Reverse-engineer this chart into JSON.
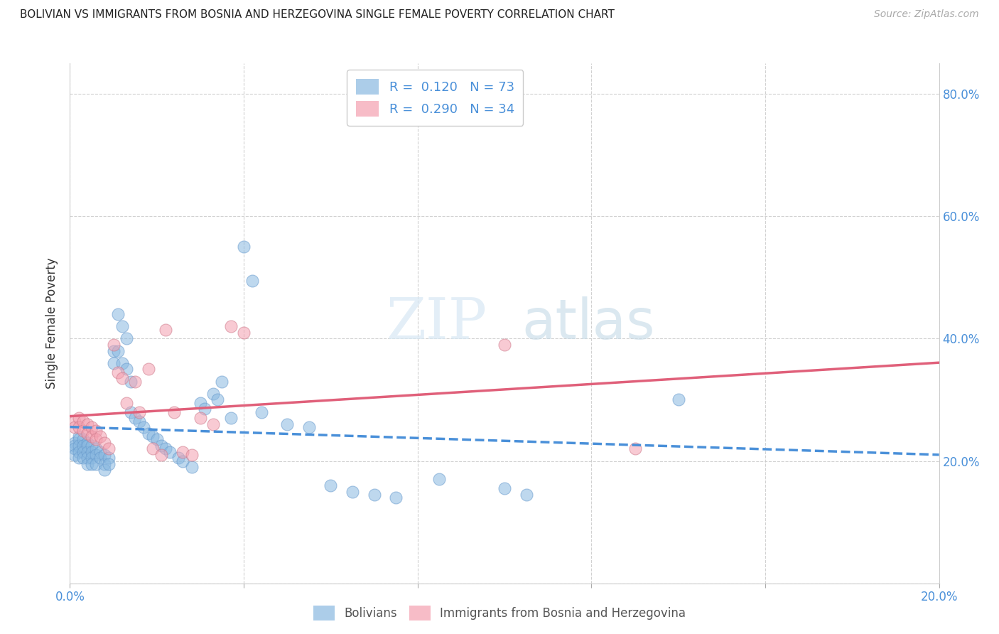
{
  "title": "BOLIVIAN VS IMMIGRANTS FROM BOSNIA AND HERZEGOVINA SINGLE FEMALE POVERTY CORRELATION CHART",
  "source": "Source: ZipAtlas.com",
  "xlabel": "",
  "ylabel": "Single Female Poverty",
  "xlim": [
    0.0,
    0.2
  ],
  "ylim": [
    0.0,
    0.85
  ],
  "x_tick_vals": [
    0.0,
    0.04,
    0.08,
    0.12,
    0.16,
    0.2
  ],
  "x_tick_labels": [
    "0.0%",
    "",
    "",
    "",
    "",
    "20.0%"
  ],
  "y_tick_vals": [
    0.0,
    0.2,
    0.4,
    0.6,
    0.8
  ],
  "y_tick_labels_right": [
    "",
    "20.0%",
    "40.0%",
    "60.0%",
    "80.0%"
  ],
  "blue_color": "#89b8e0",
  "pink_color": "#f4a0b0",
  "trend_blue": "#4a90d9",
  "trend_pink": "#e0607a",
  "blue_scatter_x": [
    0.001,
    0.001,
    0.001,
    0.001,
    0.002,
    0.002,
    0.002,
    0.002,
    0.002,
    0.003,
    0.003,
    0.003,
    0.003,
    0.004,
    0.004,
    0.004,
    0.004,
    0.004,
    0.005,
    0.005,
    0.005,
    0.005,
    0.006,
    0.006,
    0.006,
    0.007,
    0.007,
    0.008,
    0.008,
    0.008,
    0.009,
    0.009,
    0.01,
    0.01,
    0.011,
    0.011,
    0.012,
    0.012,
    0.013,
    0.013,
    0.014,
    0.014,
    0.015,
    0.016,
    0.017,
    0.018,
    0.019,
    0.02,
    0.021,
    0.022,
    0.023,
    0.025,
    0.026,
    0.028,
    0.03,
    0.031,
    0.033,
    0.034,
    0.035,
    0.037,
    0.04,
    0.042,
    0.044,
    0.05,
    0.055,
    0.06,
    0.065,
    0.07,
    0.075,
    0.085,
    0.1,
    0.105,
    0.14
  ],
  "blue_scatter_y": [
    0.23,
    0.225,
    0.22,
    0.21,
    0.24,
    0.235,
    0.225,
    0.215,
    0.205,
    0.235,
    0.225,
    0.215,
    0.205,
    0.23,
    0.225,
    0.215,
    0.205,
    0.195,
    0.225,
    0.215,
    0.205,
    0.195,
    0.22,
    0.21,
    0.195,
    0.215,
    0.205,
    0.21,
    0.195,
    0.185,
    0.205,
    0.195,
    0.38,
    0.36,
    0.44,
    0.38,
    0.42,
    0.36,
    0.4,
    0.35,
    0.33,
    0.28,
    0.27,
    0.265,
    0.255,
    0.245,
    0.24,
    0.235,
    0.225,
    0.22,
    0.215,
    0.205,
    0.2,
    0.19,
    0.295,
    0.285,
    0.31,
    0.3,
    0.33,
    0.27,
    0.55,
    0.495,
    0.28,
    0.26,
    0.255,
    0.16,
    0.15,
    0.145,
    0.14,
    0.17,
    0.155,
    0.145,
    0.3
  ],
  "pink_scatter_x": [
    0.001,
    0.001,
    0.002,
    0.002,
    0.003,
    0.003,
    0.004,
    0.004,
    0.005,
    0.005,
    0.006,
    0.006,
    0.007,
    0.008,
    0.009,
    0.01,
    0.011,
    0.012,
    0.013,
    0.015,
    0.016,
    0.018,
    0.019,
    0.021,
    0.022,
    0.024,
    0.026,
    0.028,
    0.03,
    0.033,
    0.037,
    0.04,
    0.1,
    0.13
  ],
  "pink_scatter_y": [
    0.265,
    0.255,
    0.27,
    0.255,
    0.265,
    0.25,
    0.26,
    0.245,
    0.255,
    0.24,
    0.25,
    0.235,
    0.24,
    0.23,
    0.22,
    0.39,
    0.345,
    0.335,
    0.295,
    0.33,
    0.28,
    0.35,
    0.22,
    0.21,
    0.415,
    0.28,
    0.215,
    0.21,
    0.27,
    0.26,
    0.42,
    0.41,
    0.39,
    0.22
  ]
}
